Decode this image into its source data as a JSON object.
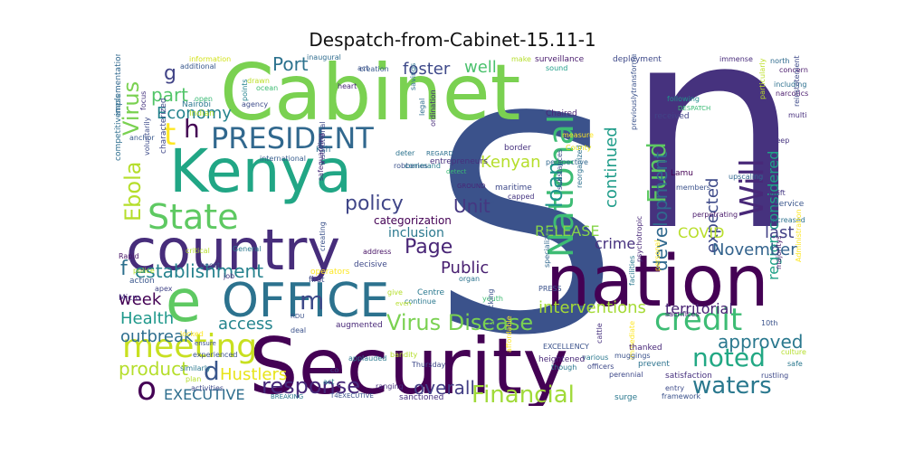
{
  "title": "Despatch-from-Cabinet-15.11-1",
  "words": [
    {
      "text": "S",
      "color": "#3b528b"
    },
    {
      "text": "n",
      "color": "#46327e"
    },
    {
      "text": "Cabinet",
      "color": "#7ad151"
    },
    {
      "text": "Security",
      "color": "#440154"
    },
    {
      "text": "nation",
      "color": "#440154"
    },
    {
      "text": "country",
      "color": "#472d7b"
    },
    {
      "text": "Kenya",
      "color": "#21a685"
    },
    {
      "text": "OFFICE",
      "color": "#2c728e"
    },
    {
      "text": "e",
      "color": "#5ec962"
    },
    {
      "text": "PRESIDENT",
      "color": "#31688e"
    },
    {
      "text": "National",
      "color": "#3dbc74"
    },
    {
      "text": "State",
      "color": "#5ec962"
    },
    {
      "text": "Will",
      "color": "#482878"
    },
    {
      "text": "meeting",
      "color": "#c8e020"
    },
    {
      "text": "credit",
      "color": "#3dbc74"
    },
    {
      "text": "Fund",
      "color": "#5ec962"
    },
    {
      "text": "Virus Disease",
      "color": "#7ad151"
    },
    {
      "text": "Financial",
      "color": "#a0da39"
    },
    {
      "text": "noted",
      "color": "#22a884"
    },
    {
      "text": "waters",
      "color": "#2a788e"
    },
    {
      "text": "Ebola",
      "color": "#b5de2b"
    },
    {
      "text": "Virus",
      "color": "#7ad151"
    },
    {
      "text": "establishment",
      "color": "#26828e"
    },
    {
      "text": "response",
      "color": "#472a7a"
    },
    {
      "text": "approved",
      "color": "#2a788e"
    },
    {
      "text": "development",
      "color": "#30698e"
    },
    {
      "text": "policy",
      "color": "#404688"
    },
    {
      "text": "loan",
      "color": "#1f968b"
    },
    {
      "text": "region considered",
      "color": "#1fa187"
    },
    {
      "text": "expected",
      "color": "#3e4a89"
    },
    {
      "text": "continued",
      "color": "#1e9c89"
    },
    {
      "text": "Port",
      "color": "#2c728e"
    },
    {
      "text": "foster",
      "color": "#3e4989"
    },
    {
      "text": "well",
      "color": "#4ac16d"
    },
    {
      "text": "Page",
      "color": "#482576"
    },
    {
      "text": "Kenyan",
      "color": "#b5de2b"
    },
    {
      "text": "Unit",
      "color": "#453781"
    },
    {
      "text": "Public",
      "color": "#481f70"
    },
    {
      "text": "November",
      "color": "#33638d"
    },
    {
      "text": "last",
      "color": "#424186"
    },
    {
      "text": "Economy",
      "color": "#25848e"
    },
    {
      "text": "part",
      "color": "#52c569"
    },
    {
      "text": "product",
      "color": "#b5de2b"
    },
    {
      "text": "overall",
      "color": "#433e85"
    },
    {
      "text": "outbreak",
      "color": "#2e6e8e"
    },
    {
      "text": "Health",
      "color": "#1f988b"
    },
    {
      "text": "access",
      "color": "#25858e"
    },
    {
      "text": "interventions",
      "color": "#a5db36"
    },
    {
      "text": "crime",
      "color": "#46307e"
    },
    {
      "text": "COVID",
      "color": "#b8de29"
    },
    {
      "text": "RELEASE",
      "color": "#86d549"
    },
    {
      "text": "Hustlers",
      "color": "#e7e419"
    },
    {
      "text": "EXECUTIVE",
      "color": "#2e6e8e"
    },
    {
      "text": "week",
      "color": "#440154"
    },
    {
      "text": "territorial",
      "color": "#482173"
    },
    {
      "text": "inclusion",
      "color": "#2a788e"
    },
    {
      "text": "categorization",
      "color": "#440154"
    },
    {
      "text": "m",
      "color": "#3e4989"
    },
    {
      "text": "o",
      "color": "#440154"
    },
    {
      "text": "d",
      "color": "#39568c"
    },
    {
      "text": "f",
      "color": "#2d708e"
    },
    {
      "text": "g",
      "color": "#414487"
    },
    {
      "text": "c",
      "color": "#3b528b"
    },
    {
      "text": "t",
      "color": "#fde725"
    },
    {
      "text": "h",
      "color": "#440154"
    },
    {
      "text": "information",
      "color": "#d2e21b"
    },
    {
      "text": "additional",
      "color": "#38588c"
    },
    {
      "text": "focus",
      "color": "#46337f"
    },
    {
      "text": "Nairobi",
      "color": "#2a778e"
    },
    {
      "text": "Indian",
      "color": "#b5de2b"
    },
    {
      "text": "open",
      "color": "#3bbb75"
    },
    {
      "text": "implementation",
      "color": "#31688e"
    },
    {
      "text": "anchor",
      "color": "#38588c"
    },
    {
      "text": "characterized",
      "color": "#3f4788"
    },
    {
      "text": "competitiveness",
      "color": "#2e6e8e"
    },
    {
      "text": "voluntarily",
      "color": "#3e4c8a"
    },
    {
      "text": "Rapid",
      "color": "#481668"
    },
    {
      "text": "action",
      "color": "#39568c"
    },
    {
      "text": "police",
      "color": "#b5de2b"
    },
    {
      "text": "apex",
      "color": "#414487"
    },
    {
      "text": "Micro",
      "color": "#46307e"
    },
    {
      "text": "inaugural",
      "color": "#2f6c8e"
    },
    {
      "text": "creation",
      "color": "#38598c"
    },
    {
      "text": "heart",
      "color": "#482878"
    },
    {
      "text": "savings",
      "color": "#2d718e"
    },
    {
      "text": "surveillance",
      "color": "#481a6c"
    },
    {
      "text": "sound",
      "color": "#1f9e89"
    },
    {
      "text": "deployment",
      "color": "#3e4989"
    },
    {
      "text": "immense",
      "color": "#472a7a"
    },
    {
      "text": "north",
      "color": "#2f6b8e"
    },
    {
      "text": "concern",
      "color": "#48186a"
    },
    {
      "text": "including",
      "color": "#2d708e"
    },
    {
      "text": "narcotics",
      "color": "#48196b"
    },
    {
      "text": "Chaired",
      "color": "#482475"
    },
    {
      "text": "following",
      "color": "#21918c"
    },
    {
      "text": "DESPATCH",
      "color": "#3bbb75"
    },
    {
      "text": "particularly",
      "color": "#bddf26"
    },
    {
      "text": "received",
      "color": "#414487"
    },
    {
      "text": "multi",
      "color": "#472f7d"
    },
    {
      "text": "keep",
      "color": "#46337f"
    },
    {
      "text": "reinstatement Force",
      "color": "#3e4a89"
    },
    {
      "text": "Service",
      "color": "#39568c"
    },
    {
      "text": "increased",
      "color": "#2c718e"
    },
    {
      "text": "swift",
      "color": "#453882"
    },
    {
      "text": "members",
      "color": "#3b528b"
    },
    {
      "text": "Lamu",
      "color": "#440154"
    },
    {
      "text": "upscaling",
      "color": "#31678e"
    },
    {
      "text": "capped",
      "color": "#453581"
    },
    {
      "text": "perpetrating",
      "color": "#48186a"
    },
    {
      "text": "sacrifices",
      "color": "#482677"
    },
    {
      "text": "international",
      "color": "#365c8d"
    },
    {
      "text": "Ksh",
      "color": "#2e6e8e"
    },
    {
      "text": "institutional",
      "color": "#3e4a89"
    },
    {
      "text": "robberies",
      "color": "#3b528b"
    },
    {
      "text": "deter",
      "color": "#2c738e"
    },
    {
      "text": "detect",
      "color": "#3bbb75"
    },
    {
      "text": "command",
      "color": "#287c8e"
    },
    {
      "text": "entrepreneurs",
      "color": "#46307e"
    },
    {
      "text": "maritime",
      "color": "#3e4989"
    },
    {
      "text": "GROUND",
      "color": "#482878"
    },
    {
      "text": "substances",
      "color": "#3e4c8a"
    },
    {
      "text": "reorganized",
      "color": "#2d708e"
    },
    {
      "text": "previouslytransformative",
      "color": "#3b528b"
    },
    {
      "text": "border",
      "color": "#46317e"
    },
    {
      "text": "measure",
      "color": "#fde725"
    },
    {
      "text": "perspective",
      "color": "#31688e"
    },
    {
      "text": "County",
      "color": "#e5e419"
    },
    {
      "text": "legal",
      "color": "#2e6d8e"
    },
    {
      "text": "ordination",
      "color": "#472c7a"
    },
    {
      "text": "REGARD",
      "color": "#2d708e"
    },
    {
      "text": "drawn",
      "color": "#bddf26"
    },
    {
      "text": "ocean",
      "color": "#3fbc73"
    },
    {
      "text": "points",
      "color": "#25838e"
    },
    {
      "text": "agency",
      "color": "#3e4c8a"
    },
    {
      "text": "act",
      "color": "#3b528b"
    },
    {
      "text": "make",
      "color": "#b5de2b"
    },
    {
      "text": "General",
      "color": "#2a788e"
    },
    {
      "text": "critical",
      "color": "#b5de2b"
    },
    {
      "text": "boost",
      "color": "#3b528b"
    },
    {
      "text": "safeguarding",
      "color": "#472d7b"
    },
    {
      "text": "first",
      "color": "#3e4a89"
    },
    {
      "text": "job",
      "color": "#46327e"
    },
    {
      "text": "creating",
      "color": "#3b528b"
    },
    {
      "text": "address",
      "color": "#471365"
    },
    {
      "text": "decisive",
      "color": "#3e4989"
    },
    {
      "text": "operators",
      "color": "#fde725"
    },
    {
      "text": "Centre",
      "color": "#2a788e"
    },
    {
      "text": "give",
      "color": "#b5de2b"
    },
    {
      "text": "continue",
      "color": "#2a788e"
    },
    {
      "text": "organ",
      "color": "#2c738e"
    },
    {
      "text": "youth",
      "color": "#3fbc73"
    },
    {
      "text": "specialized",
      "color": "#31688e"
    },
    {
      "text": "psychotropic",
      "color": "#482878"
    },
    {
      "text": "personal",
      "color": "#fde725"
    },
    {
      "text": "PRESS",
      "color": "#3b528b"
    },
    {
      "text": "facilities",
      "color": "#2a788e"
    },
    {
      "text": "majoritys",
      "color": "#481b6d"
    },
    {
      "text": "Administration",
      "color": "#fde725"
    },
    {
      "text": "10th",
      "color": "#3b528b"
    },
    {
      "text": "culture",
      "color": "#b5de2b"
    },
    {
      "text": "safe",
      "color": "#2a788e"
    },
    {
      "text": "rustling",
      "color": "#3e4989"
    },
    {
      "text": "satisfaction",
      "color": "#46307e"
    },
    {
      "text": "prevent",
      "color": "#2c738e"
    },
    {
      "text": "framework",
      "color": "#3b528b"
    },
    {
      "text": "surge",
      "color": "#2a788e"
    },
    {
      "text": "entry",
      "color": "#3e4c8a"
    },
    {
      "text": "immediate",
      "color": "#fde725"
    },
    {
      "text": "thanked",
      "color": "#482878"
    },
    {
      "text": "muggings",
      "color": "#3b528b"
    },
    {
      "text": "cattle",
      "color": "#46307e"
    },
    {
      "text": "various",
      "color": "#2a788e"
    },
    {
      "text": "officers",
      "color": "#3e4989"
    },
    {
      "text": "EXCELLENCY",
      "color": "#3b528b"
    },
    {
      "text": "heightened",
      "color": "#482878"
    },
    {
      "text": "though",
      "color": "#2a788e"
    },
    {
      "text": "perennial",
      "color": "#3e4989"
    },
    {
      "text": "affordable",
      "color": "#fde725"
    },
    {
      "text": "trafficking",
      "color": "#3b528b"
    },
    {
      "text": "bandity",
      "color": "#b5de2b"
    },
    {
      "text": "Thursday",
      "color": "#3e4989"
    },
    {
      "text": "sanctioned",
      "color": "#46307e"
    },
    {
      "text": "applauded",
      "color": "#2a788e"
    },
    {
      "text": "deal",
      "color": "#3b528b"
    },
    {
      "text": "augmented",
      "color": "#482878"
    },
    {
      "text": "RDU",
      "color": "#3b528b"
    },
    {
      "text": "even",
      "color": "#b5de2b"
    },
    {
      "text": "co",
      "color": "#3e4989"
    },
    {
      "text": "ranging",
      "color": "#46307e"
    },
    {
      "text": "act",
      "color": "#2a788e"
    },
    {
      "text": "T4EXECUTIVE",
      "color": "#3b528b"
    },
    {
      "text": "BREAKING",
      "color": "#2a788e"
    },
    {
      "text": "activities",
      "color": "#3e4989"
    },
    {
      "text": "similarly",
      "color": "#2a788e"
    },
    {
      "text": "plan",
      "color": "#b5de2b"
    },
    {
      "text": "experienced",
      "color": "#3b528b"
    },
    {
      "text": "locked",
      "color": "#fde725"
    },
    {
      "text": "ensure",
      "color": "#3b528b"
    }
  ]
}
